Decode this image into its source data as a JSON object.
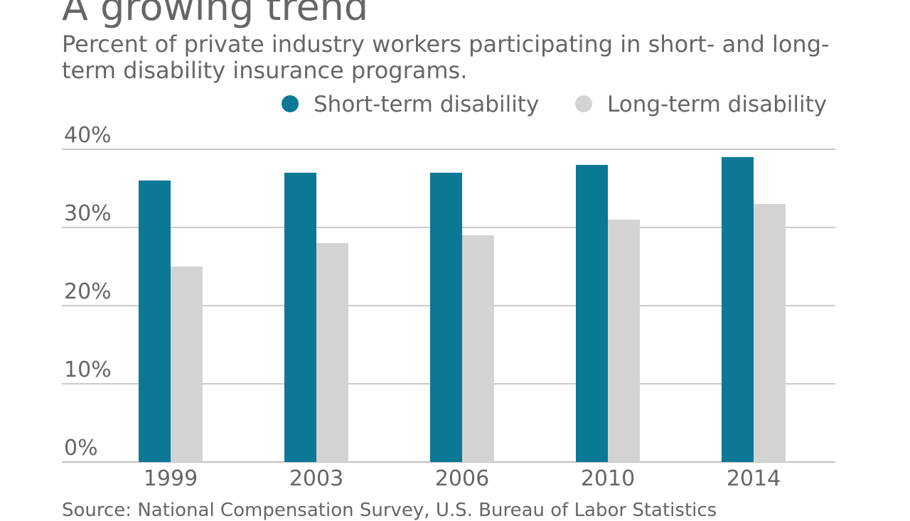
{
  "title": "A growing trend",
  "subtitle": "Percent of private industry workers participating in short- and long-term disability insurance programs.",
  "source": "Source: National Compensation Survey, U.S. Bureau of Labor Statistics",
  "chart_data": {
    "type": "bar",
    "categories": [
      "1999",
      "2003",
      "2006",
      "2010",
      "2014"
    ],
    "series": [
      {
        "name": "Short-term disability",
        "values": [
          36,
          37,
          37,
          38,
          39
        ],
        "color": "#0b7896"
      },
      {
        "name": "Long-term disability",
        "values": [
          25,
          28,
          29,
          31,
          33
        ],
        "color": "#d4d3d4"
      }
    ],
    "ylim": [
      0,
      40
    ],
    "yticks": [
      "0%",
      "10%",
      "20%",
      "30%",
      "40%"
    ],
    "grid": true,
    "legend": "top-right"
  }
}
